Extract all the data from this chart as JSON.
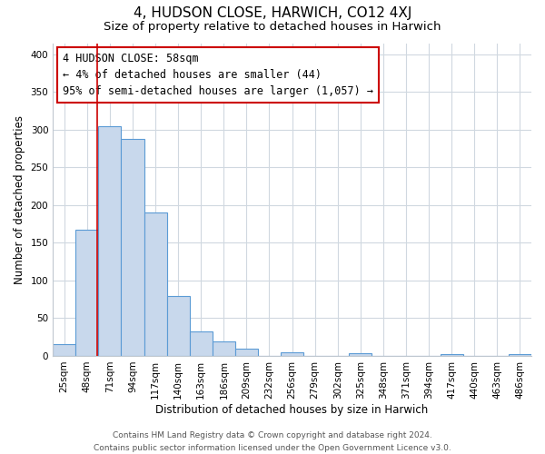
{
  "title": "4, HUDSON CLOSE, HARWICH, CO12 4XJ",
  "subtitle": "Size of property relative to detached houses in Harwich",
  "xlabel": "Distribution of detached houses by size in Harwich",
  "ylabel": "Number of detached properties",
  "footer_line1": "Contains HM Land Registry data © Crown copyright and database right 2024.",
  "footer_line2": "Contains public sector information licensed under the Open Government Licence v3.0.",
  "bin_labels": [
    "25sqm",
    "48sqm",
    "71sqm",
    "94sqm",
    "117sqm",
    "140sqm",
    "163sqm",
    "186sqm",
    "209sqm",
    "232sqm",
    "256sqm",
    "279sqm",
    "302sqm",
    "325sqm",
    "348sqm",
    "371sqm",
    "394sqm",
    "417sqm",
    "440sqm",
    "463sqm",
    "486sqm"
  ],
  "bar_heights": [
    16,
    167,
    305,
    288,
    190,
    79,
    32,
    19,
    10,
    0,
    5,
    0,
    0,
    3,
    0,
    0,
    0,
    2,
    0,
    0,
    2
  ],
  "bar_color": "#c8d8ec",
  "bar_edge_color": "#5b9bd5",
  "annotation_box_text": "4 HUDSON CLOSE: 58sqm\n← 4% of detached houses are smaller (44)\n95% of semi-detached houses are larger (1,057) →",
  "annotation_box_color": "white",
  "annotation_box_edge_color": "#cc0000",
  "vline_color": "#cc0000",
  "ylim": [
    0,
    415
  ],
  "yticks": [
    0,
    50,
    100,
    150,
    200,
    250,
    300,
    350,
    400
  ],
  "title_fontsize": 11,
  "subtitle_fontsize": 9.5,
  "xlabel_fontsize": 8.5,
  "ylabel_fontsize": 8.5,
  "tick_fontsize": 7.5,
  "annotation_fontsize": 8.5,
  "footer_fontsize": 6.5,
  "background_color": "#ffffff"
}
